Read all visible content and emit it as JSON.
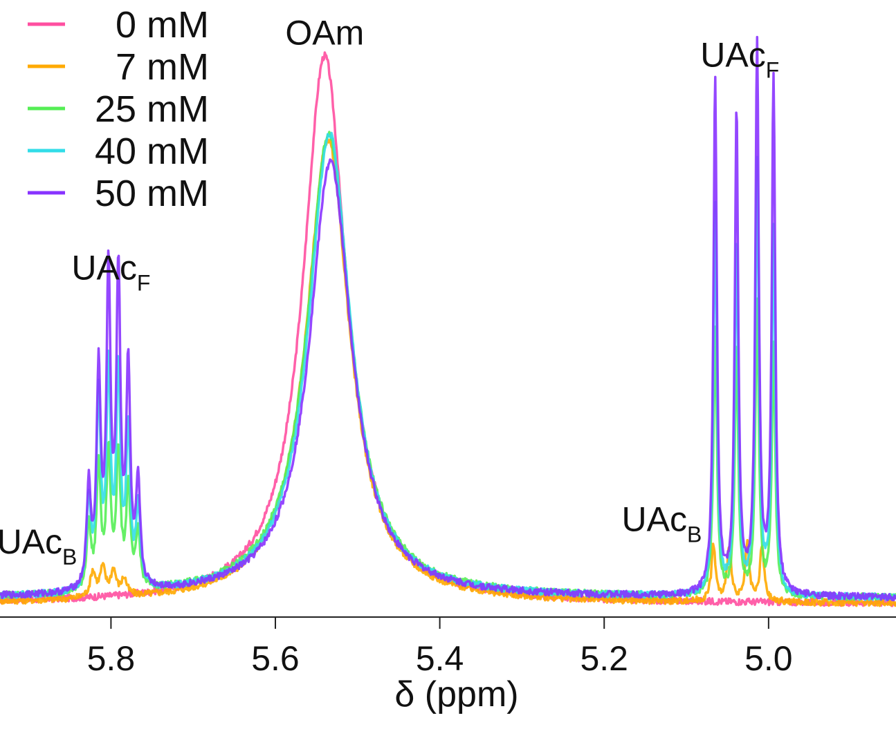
{
  "chart_data": {
    "type": "line",
    "xlabel": "δ (ppm)",
    "xlim": [
      5.935,
      4.845
    ],
    "x_reversed": true,
    "x_ticks": [
      {
        "value": 5.8,
        "label": "5.8"
      },
      {
        "value": 5.6,
        "label": "5.6"
      },
      {
        "value": 5.4,
        "label": "5.4"
      },
      {
        "value": 5.2,
        "label": "5.2"
      },
      {
        "value": 5.0,
        "label": "5.0"
      }
    ],
    "ylim": [
      0,
      1.05
    ],
    "y_axis_shown": false,
    "grid": false,
    "legend": {
      "placement": "top-left",
      "entries": [
        {
          "label": "0 mM",
          "color": "#ff4fa0"
        },
        {
          "label": "7 mM",
          "color": "#ffaa00"
        },
        {
          "label": "25 mM",
          "color": "#55ee55"
        },
        {
          "label": "40 mM",
          "color": "#33dde8"
        },
        {
          "label": "50 mM",
          "color": "#8833ff"
        }
      ]
    },
    "annotations": [
      {
        "text": "OAm",
        "sub": "",
        "x": 5.54,
        "y": 1.02
      },
      {
        "text": "UAc",
        "sub": "F",
        "x": 5.8,
        "y": 0.6
      },
      {
        "text": "UAc",
        "sub": "B",
        "x": 5.89,
        "y": 0.11
      },
      {
        "text": "UAc",
        "sub": "F",
        "x": 5.035,
        "y": 0.98
      },
      {
        "text": "UAc",
        "sub": "B",
        "x": 5.13,
        "y": 0.15
      }
    ],
    "series": [
      {
        "name": "0 mM",
        "color": "#ff4fa0",
        "baseline": 0.02,
        "peaks": [
          {
            "center": 5.54,
            "height": 0.98,
            "width": 0.032,
            "shape": "lorentz"
          }
        ]
      },
      {
        "name": "7 mM",
        "color": "#ffaa00",
        "baseline": 0.02,
        "peaks": [
          {
            "center": 5.536,
            "height": 0.83,
            "width": 0.032,
            "shape": "lorentz"
          },
          {
            "center": 5.822,
            "height": 0.045,
            "width": 0.004,
            "shape": "lorentz"
          },
          {
            "center": 5.81,
            "height": 0.05,
            "width": 0.004,
            "shape": "lorentz"
          },
          {
            "center": 5.797,
            "height": 0.045,
            "width": 0.004,
            "shape": "lorentz"
          },
          {
            "center": 5.784,
            "height": 0.03,
            "width": 0.004,
            "shape": "lorentz"
          },
          {
            "center": 5.067,
            "height": 0.1,
            "width": 0.003,
            "shape": "lorentz"
          },
          {
            "center": 5.048,
            "height": 0.1,
            "width": 0.003,
            "shape": "lorentz"
          },
          {
            "center": 5.026,
            "height": 0.1,
            "width": 0.003,
            "shape": "lorentz"
          },
          {
            "center": 5.008,
            "height": 0.1,
            "width": 0.003,
            "shape": "lorentz"
          }
        ]
      },
      {
        "name": "25 mM",
        "color": "#55ee55",
        "baseline": 0.03,
        "peaks": [
          {
            "center": 5.535,
            "height": 0.83,
            "width": 0.032,
            "shape": "lorentz"
          },
          {
            "center": 5.827,
            "height": 0.12,
            "width": 0.003,
            "shape": "lorentz"
          },
          {
            "center": 5.815,
            "height": 0.22,
            "width": 0.003,
            "shape": "lorentz"
          },
          {
            "center": 5.803,
            "height": 0.24,
            "width": 0.003,
            "shape": "lorentz"
          },
          {
            "center": 5.791,
            "height": 0.24,
            "width": 0.003,
            "shape": "lorentz"
          },
          {
            "center": 5.779,
            "height": 0.18,
            "width": 0.003,
            "shape": "lorentz"
          },
          {
            "center": 5.767,
            "height": 0.1,
            "width": 0.003,
            "shape": "lorentz"
          },
          {
            "center": 5.065,
            "height": 0.48,
            "width": 0.0025,
            "shape": "lorentz"
          },
          {
            "center": 5.039,
            "height": 0.44,
            "width": 0.0025,
            "shape": "lorentz"
          },
          {
            "center": 5.014,
            "height": 0.52,
            "width": 0.0025,
            "shape": "lorentz"
          },
          {
            "center": 4.994,
            "height": 0.44,
            "width": 0.0025,
            "shape": "lorentz"
          }
        ]
      },
      {
        "name": "40 mM",
        "color": "#33dde8",
        "baseline": 0.03,
        "peaks": [
          {
            "center": 5.534,
            "height": 0.83,
            "width": 0.031,
            "shape": "lorentz"
          },
          {
            "center": 5.827,
            "height": 0.16,
            "width": 0.003,
            "shape": "lorentz"
          },
          {
            "center": 5.815,
            "height": 0.34,
            "width": 0.003,
            "shape": "lorentz"
          },
          {
            "center": 5.803,
            "height": 0.38,
            "width": 0.003,
            "shape": "lorentz"
          },
          {
            "center": 5.791,
            "height": 0.38,
            "width": 0.003,
            "shape": "lorentz"
          },
          {
            "center": 5.779,
            "height": 0.28,
            "width": 0.003,
            "shape": "lorentz"
          },
          {
            "center": 5.767,
            "height": 0.14,
            "width": 0.003,
            "shape": "lorentz"
          },
          {
            "center": 5.065,
            "height": 0.7,
            "width": 0.0025,
            "shape": "lorentz"
          },
          {
            "center": 5.039,
            "height": 0.63,
            "width": 0.0025,
            "shape": "lorentz"
          },
          {
            "center": 5.014,
            "height": 0.77,
            "width": 0.0025,
            "shape": "lorentz"
          },
          {
            "center": 4.994,
            "height": 0.65,
            "width": 0.0025,
            "shape": "lorentz"
          }
        ]
      },
      {
        "name": "50 mM",
        "color": "#8833ff",
        "baseline": 0.03,
        "peaks": [
          {
            "center": 5.533,
            "height": 0.78,
            "width": 0.031,
            "shape": "lorentz"
          },
          {
            "center": 5.827,
            "height": 0.18,
            "width": 0.003,
            "shape": "lorentz"
          },
          {
            "center": 5.815,
            "height": 0.38,
            "width": 0.003,
            "shape": "lorentz"
          },
          {
            "center": 5.803,
            "height": 0.55,
            "width": 0.003,
            "shape": "lorentz"
          },
          {
            "center": 5.791,
            "height": 0.55,
            "width": 0.003,
            "shape": "lorentz"
          },
          {
            "center": 5.779,
            "height": 0.38,
            "width": 0.003,
            "shape": "lorentz"
          },
          {
            "center": 5.767,
            "height": 0.18,
            "width": 0.003,
            "shape": "lorentz"
          },
          {
            "center": 5.065,
            "height": 0.92,
            "width": 0.0025,
            "shape": "lorentz"
          },
          {
            "center": 5.039,
            "height": 0.86,
            "width": 0.0025,
            "shape": "lorentz"
          },
          {
            "center": 5.014,
            "height": 0.98,
            "width": 0.0025,
            "shape": "lorentz"
          },
          {
            "center": 4.994,
            "height": 0.92,
            "width": 0.0025,
            "shape": "lorentz"
          }
        ]
      }
    ]
  }
}
